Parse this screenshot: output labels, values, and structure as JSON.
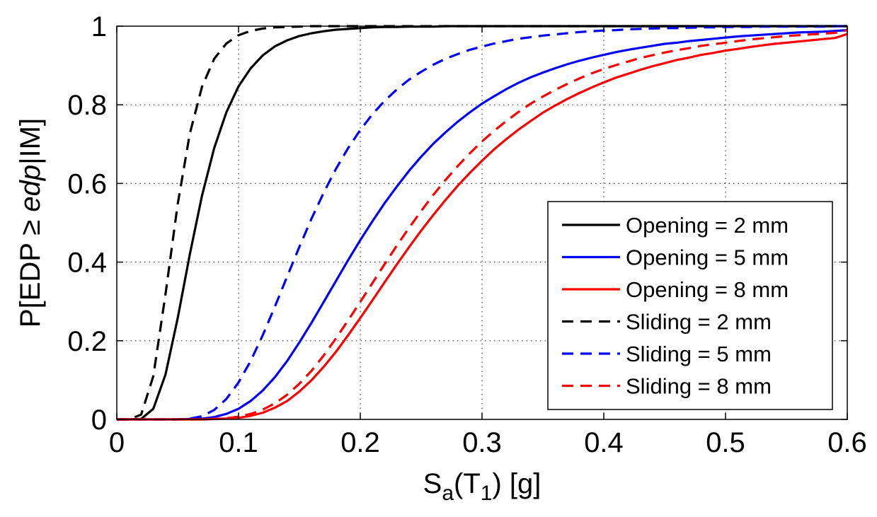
{
  "chart_data": {
    "type": "line",
    "title": "",
    "xlabel": {
      "base": "S",
      "sub_a": "a",
      "open": "(T",
      "sub_1": "1",
      "close": ") [g]"
    },
    "ylabel": {
      "pre": "P[EDP ≥ ",
      "italic": "edp",
      "post": "|IM]"
    },
    "xlim": [
      0,
      0.6
    ],
    "ylim": [
      0,
      1
    ],
    "xticks": [
      "0",
      "0.1",
      "0.2",
      "0.3",
      "0.4",
      "0.5",
      "0.6"
    ],
    "yticks": [
      "0",
      "0.2",
      "0.4",
      "0.6",
      "0.8",
      "1"
    ],
    "grid": true,
    "legend_position": "bottom-right",
    "x": [
      0,
      0.01,
      0.02,
      0.03,
      0.04,
      0.05,
      0.06,
      0.07,
      0.08,
      0.09,
      0.1,
      0.11,
      0.12,
      0.13,
      0.14,
      0.15,
      0.16,
      0.17,
      0.18,
      0.19,
      0.2,
      0.21,
      0.22,
      0.23,
      0.24,
      0.25,
      0.26,
      0.27,
      0.28,
      0.29,
      0.3,
      0.31,
      0.32,
      0.33,
      0.34,
      0.35,
      0.36,
      0.37,
      0.38,
      0.39,
      0.4,
      0.41,
      0.42,
      0.43,
      0.44,
      0.45,
      0.46,
      0.47,
      0.48,
      0.49,
      0.5,
      0.51,
      0.52,
      0.53,
      0.54,
      0.55,
      0.56,
      0.57,
      0.58,
      0.59,
      0.6
    ],
    "series": [
      {
        "name": "Opening = 2 mm",
        "color": "#000000",
        "style": "solid",
        "values": [
          0,
          0,
          0.001,
          0.027,
          0.114,
          0.257,
          0.42,
          0.569,
          0.69,
          0.781,
          0.847,
          0.893,
          0.926,
          0.949,
          0.964,
          0.975,
          0.982,
          0.987,
          0.991,
          0.993,
          0.995,
          0.997,
          0.998,
          0.998,
          0.999,
          0.999,
          0.999,
          1,
          1,
          1,
          1,
          1,
          1,
          1,
          1,
          1,
          1,
          1,
          1,
          1,
          1,
          1,
          1,
          1,
          1,
          1,
          1,
          1,
          1,
          1,
          1,
          1,
          1,
          1,
          1,
          1,
          1,
          1,
          1,
          1,
          1
        ]
      },
      {
        "name": "Opening = 5 mm",
        "color": "#0000ff",
        "style": "solid",
        "values": [
          0,
          0,
          0,
          0,
          0,
          0,
          0.001,
          0.002,
          0.006,
          0.014,
          0.027,
          0.047,
          0.074,
          0.108,
          0.149,
          0.196,
          0.246,
          0.299,
          0.352,
          0.405,
          0.456,
          0.504,
          0.55,
          0.592,
          0.632,
          0.668,
          0.701,
          0.73,
          0.757,
          0.781,
          0.803,
          0.822,
          0.84,
          0.856,
          0.87,
          0.882,
          0.893,
          0.903,
          0.912,
          0.92,
          0.927,
          0.934,
          0.94,
          0.945,
          0.95,
          0.955,
          0.958,
          0.962,
          0.965,
          0.968,
          0.971,
          0.974,
          0.976,
          0.978,
          0.98,
          0.982,
          0.984,
          0.985,
          0.986,
          0.988,
          0.99
        ]
      },
      {
        "name": "Opening = 8 mm",
        "color": "#ff0000",
        "style": "solid",
        "values": [
          0,
          0,
          0,
          0,
          0,
          0,
          0,
          0,
          0.001,
          0.002,
          0.004,
          0.009,
          0.017,
          0.03,
          0.047,
          0.071,
          0.1,
          0.134,
          0.172,
          0.214,
          0.258,
          0.303,
          0.349,
          0.394,
          0.438,
          0.48,
          0.52,
          0.558,
          0.594,
          0.627,
          0.658,
          0.687,
          0.713,
          0.737,
          0.759,
          0.78,
          0.798,
          0.815,
          0.83,
          0.844,
          0.857,
          0.869,
          0.879,
          0.889,
          0.898,
          0.906,
          0.914,
          0.92,
          0.927,
          0.932,
          0.938,
          0.942,
          0.947,
          0.951,
          0.955,
          0.958,
          0.961,
          0.964,
          0.967,
          0.97,
          0.98
        ]
      },
      {
        "name": "Sliding = 2 mm",
        "color": "#000000",
        "style": "dashed",
        "values": [
          0,
          0,
          0.012,
          0.11,
          0.318,
          0.547,
          0.727,
          0.846,
          0.917,
          0.956,
          0.977,
          0.988,
          0.994,
          0.997,
          0.998,
          0.999,
          1,
          1,
          1,
          1,
          1,
          1,
          1,
          1,
          1,
          1,
          1,
          1,
          1,
          1,
          1,
          1,
          1,
          1,
          1,
          1,
          1,
          1,
          1,
          1,
          1,
          1,
          1,
          1,
          1,
          1,
          1,
          1,
          1,
          1,
          1,
          1,
          1,
          1,
          1,
          1,
          1,
          1,
          1,
          1,
          1
        ]
      },
      {
        "name": "Sliding = 5 mm",
        "color": "#0000ff",
        "style": "dashed",
        "values": [
          0,
          0,
          0,
          0,
          0,
          0,
          0.002,
          0.008,
          0.024,
          0.052,
          0.094,
          0.149,
          0.215,
          0.288,
          0.364,
          0.439,
          0.511,
          0.577,
          0.637,
          0.69,
          0.736,
          0.776,
          0.81,
          0.839,
          0.864,
          0.884,
          0.902,
          0.917,
          0.929,
          0.94,
          0.948,
          0.956,
          0.962,
          0.968,
          0.972,
          0.976,
          0.979,
          0.982,
          0.985,
          0.987,
          0.989,
          0.99,
          0.992,
          0.993,
          0.994,
          0.995,
          0.995,
          0.996,
          0.997,
          0.997,
          0.998,
          0.998,
          0.998,
          0.999,
          0.999,
          0.999,
          0.999,
          0.999,
          0.999,
          1,
          1
        ]
      },
      {
        "name": "Sliding = 8 mm",
        "color": "#ff0000",
        "style": "dashed",
        "values": [
          0,
          0,
          0,
          0,
          0,
          0,
          0,
          0,
          0.001,
          0.003,
          0.007,
          0.014,
          0.025,
          0.041,
          0.063,
          0.091,
          0.124,
          0.163,
          0.206,
          0.252,
          0.299,
          0.347,
          0.395,
          0.442,
          0.487,
          0.53,
          0.571,
          0.609,
          0.644,
          0.677,
          0.707,
          0.734,
          0.759,
          0.782,
          0.803,
          0.821,
          0.838,
          0.853,
          0.867,
          0.88,
          0.891,
          0.901,
          0.91,
          0.919,
          0.926,
          0.933,
          0.939,
          0.944,
          0.95,
          0.954,
          0.958,
          0.962,
          0.966,
          0.969,
          0.972,
          0.975,
          0.977,
          0.979,
          0.981,
          0.983,
          0.99
        ]
      }
    ]
  }
}
